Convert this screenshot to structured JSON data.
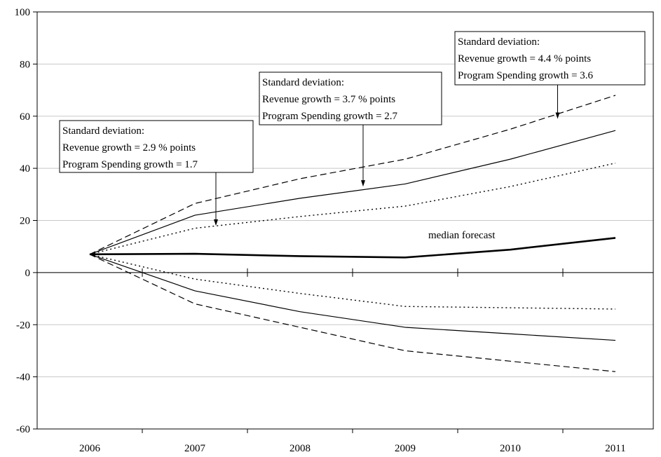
{
  "chart_data": {
    "type": "line",
    "title": "",
    "xlabel": "",
    "ylabel": "",
    "x": [
      "2006",
      "2007",
      "2008",
      "2009",
      "2010",
      "2011"
    ],
    "ylim": [
      -60,
      100
    ],
    "yticks": [
      100,
      80,
      60,
      40,
      20,
      0,
      -20,
      -40,
      -60
    ],
    "grid": true,
    "series": [
      {
        "key": "upper_outer",
        "style": "dashed",
        "values": [
          7,
          26.5,
          36,
          43.5,
          55,
          68
        ]
      },
      {
        "key": "upper_mid",
        "style": "solid",
        "values": [
          7,
          22,
          28.5,
          34,
          43.5,
          54.5
        ]
      },
      {
        "key": "upper_inner",
        "style": "dotted",
        "values": [
          7,
          17,
          21.5,
          25.5,
          33,
          42
        ]
      },
      {
        "key": "median",
        "style": "bold",
        "values": [
          7,
          7.2,
          6.3,
          5.8,
          8.8,
          13.3
        ]
      },
      {
        "key": "lower_inner",
        "style": "dotted",
        "values": [
          7,
          -2.5,
          -8,
          -13,
          -13.5,
          -14
        ]
      },
      {
        "key": "lower_mid",
        "style": "solid",
        "values": [
          7,
          -7,
          -15,
          -21,
          -23.5,
          -26
        ]
      },
      {
        "key": "lower_outer",
        "style": "dashed",
        "values": [
          7,
          -12,
          -21,
          -30,
          -34,
          -38
        ]
      }
    ],
    "annotations": [
      {
        "key": "box1",
        "lines": [
          "Standard deviation:",
          "Revenue growth = 2.9 % points",
          "Program Spending growth = 1.7"
        ],
        "arrow_to": {
          "x": "2007",
          "dx": 0.2,
          "y": 18
        }
      },
      {
        "key": "box2",
        "lines": [
          "Standard deviation:",
          "Revenue growth = 3.7 % points",
          "Program Spending growth = 2.7"
        ],
        "arrow_to": {
          "x": "2008",
          "dx": 0.6,
          "y": 33
        }
      },
      {
        "key": "box3",
        "lines": [
          "Standard deviation:",
          "Revenue growth = 4.4 % points",
          "Program Spending growth = 3.6"
        ],
        "arrow_to": {
          "x": "2010",
          "dx": 0.45,
          "y": 59
        }
      }
    ],
    "label_median": "median forecast"
  },
  "colors": {
    "line": "#000000",
    "grid": "#c8c8c8",
    "background": "#ffffff"
  }
}
